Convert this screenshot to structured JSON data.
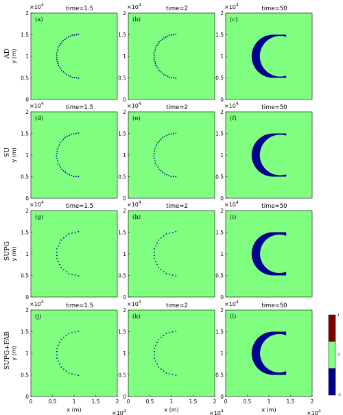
{
  "colors": {
    "background_field": "#80ff80",
    "negative": "#00008f",
    "positive": "#800000",
    "frame": "#000000"
  },
  "chart_data": {
    "type": "heatmap",
    "description_of_panels": "4 rows (schemes) x 3 columns (times)",
    "row_labels": [
      "AD",
      "SU",
      "SUPG",
      "SUPG+FAB"
    ],
    "column_titles": [
      "time=1.5",
      "time=2",
      "time=50"
    ],
    "panel_labels": [
      "(a)",
      "(b)",
      "(c)",
      "(d)",
      "(e)",
      "(f)",
      "(g)",
      "(h)",
      "(i)",
      "(j)",
      "(k)",
      "(l)"
    ],
    "xlabel": "x (m)",
    "ylabel": "y (m)",
    "xlim": [
      0,
      20000
    ],
    "ylim": [
      0,
      20000
    ],
    "exponent_label": "×10",
    "exponent_power": "4",
    "xticks": [
      "0",
      "0.5",
      "1",
      "1.5",
      "2"
    ],
    "yticks": [
      "0",
      "0.5",
      "1",
      "1.5",
      "2"
    ],
    "colorbar": {
      "ticks": [
        "1",
        "0",
        "-1"
      ],
      "range": [
        -1,
        1
      ]
    },
    "crescent": {
      "center_x": 11000,
      "center_y": 10000,
      "outer_radius": 5000,
      "start_deg": 90,
      "end_deg": 270
    },
    "shapes": [
      {
        "panel": "a",
        "kind": "dots",
        "inner_shift_x": 0,
        "count": 34
      },
      {
        "panel": "b",
        "kind": "dots",
        "inner_shift_x": 0,
        "count": 34
      },
      {
        "panel": "c",
        "kind": "crescent",
        "inner_center_x": 12600,
        "inner_radius": 4700
      },
      {
        "panel": "d",
        "kind": "dots",
        "inner_shift_x": 0,
        "count": 30
      },
      {
        "panel": "e",
        "kind": "dots",
        "inner_shift_x": 0,
        "count": 30
      },
      {
        "panel": "f",
        "kind": "crescent",
        "inner_center_x": 12600,
        "inner_radius": 4700
      },
      {
        "panel": "g",
        "kind": "dots",
        "inner_shift_x": 0,
        "count": 22
      },
      {
        "panel": "h",
        "kind": "dots",
        "inner_shift_x": 0,
        "count": 22
      },
      {
        "panel": "i",
        "kind": "crescent",
        "inner_center_x": 12400,
        "inner_radius": 4450
      },
      {
        "panel": "j",
        "kind": "dots",
        "inner_shift_x": 0,
        "count": 22
      },
      {
        "panel": "k",
        "kind": "dots",
        "inner_shift_x": 0,
        "count": 22
      },
      {
        "panel": "l",
        "kind": "crescent",
        "inner_center_x": 12400,
        "inner_radius": 4450
      }
    ]
  }
}
